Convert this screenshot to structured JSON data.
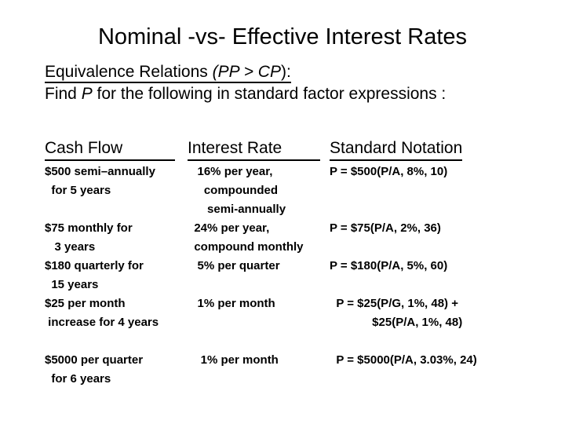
{
  "colors": {
    "text": "#000000",
    "background": "#ffffff"
  },
  "slide": {
    "title": "Nominal -vs- Effective Interest Rates",
    "subtitle": {
      "line1_regular": "Equivalence Relations ",
      "line1_italic": "(PP > CP",
      "line1_close": "):",
      "line2_prefix": "Find ",
      "line2_italic": "P",
      "line2_suffix": " for the following in standard factor expressions :"
    },
    "table": {
      "headers": [
        {
          "label": "Cash Flow"
        },
        {
          "label": "Interest Rate"
        },
        {
          "label": "Standard Notation"
        }
      ],
      "rows": [
        {
          "cash_flow": [
            "$500 semi–annually",
            "  for 5 years"
          ],
          "interest_rate": [
            "   16% per year,",
            "     compounded",
            "      semi-annually"
          ],
          "standard_notation": [
            "P = $500(P/A, 8%, 10)"
          ],
          "gap_before": false
        },
        {
          "cash_flow": [
            "$75 monthly for",
            "   3 years"
          ],
          "interest_rate": [
            "  24% per year,",
            "  compound monthly"
          ],
          "standard_notation": [
            "P = $75(P/A, 2%, 36)"
          ],
          "gap_before": false
        },
        {
          "cash_flow": [
            "$180 quarterly for",
            "  15 years"
          ],
          "interest_rate": [
            "   5% per quarter"
          ],
          "standard_notation": [
            "P = $180(P/A, 5%, 60)"
          ],
          "gap_before": false
        },
        {
          "cash_flow": [
            "$25 per month",
            " increase for 4 years"
          ],
          "interest_rate": [
            "   1% per month"
          ],
          "standard_notation": [
            "  P = $25(P/G, 1%, 48) +",
            "             $25(P/A, 1%, 48)"
          ],
          "gap_before": false
        },
        {
          "cash_flow": [
            "$5000 per quarter",
            "  for 6 years"
          ],
          "interest_rate": [
            "    1% per month"
          ],
          "standard_notation": [
            "  P = $5000(P/A, 3.03%, 24)"
          ],
          "gap_before": true
        }
      ]
    }
  }
}
